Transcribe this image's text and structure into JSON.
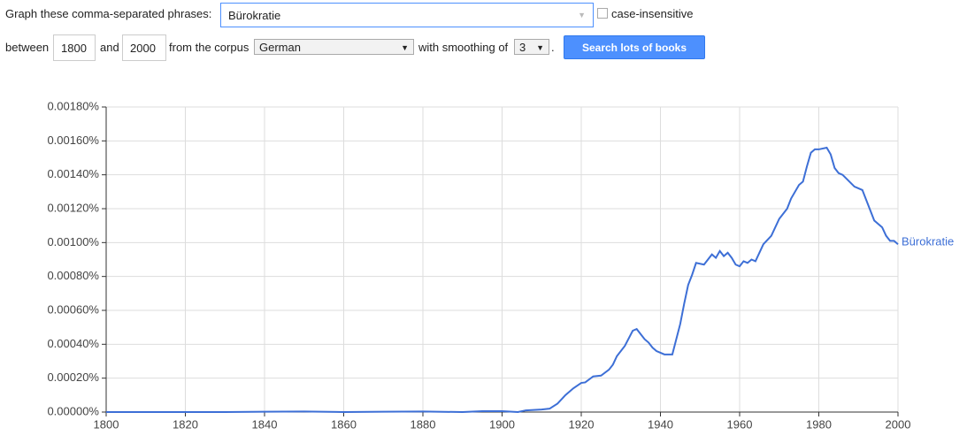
{
  "form": {
    "phrase_label": "Graph these comma-separated phrases:",
    "phrases": "Bürokratie",
    "case_insensitive": "case-insensitive",
    "between": "between",
    "start_year": "1800",
    "and": "and",
    "end_year": "2000",
    "corpus_label": "from the corpus",
    "corpus": "German",
    "smoothing_label": "with smoothing of",
    "smoothing": "3",
    "period": ".",
    "button": "Search lots of books"
  },
  "chart_data": {
    "type": "line",
    "x": [
      1800,
      1810,
      1820,
      1830,
      1840,
      1850,
      1860,
      1870,
      1880,
      1890,
      1895,
      1900,
      1904,
      1906,
      1910,
      1912,
      1914,
      1916,
      1918,
      1920,
      1921,
      1923,
      1925,
      1927,
      1928,
      1929,
      1931,
      1933,
      1934,
      1936,
      1937,
      1938,
      1939,
      1940,
      1941,
      1942,
      1943,
      1945,
      1946,
      1947,
      1948,
      1949,
      1951,
      1953,
      1954,
      1955,
      1956,
      1957,
      1958,
      1959,
      1960,
      1961,
      1962,
      1963,
      1964,
      1965,
      1966,
      1968,
      1970,
      1972,
      1973,
      1975,
      1976,
      1977,
      1978,
      1979,
      1980,
      1982,
      1983,
      1984,
      1985,
      1986,
      1989,
      1991,
      1992,
      1993,
      1994,
      1996,
      1997,
      1998,
      1999,
      2000
    ],
    "series": [
      {
        "name": "Bürokratie",
        "color": "#3d6fd6",
        "values": [
          0,
          0,
          0,
          0,
          2e-06,
          3e-06,
          0,
          2e-06,
          3e-06,
          0,
          5e-06,
          5e-06,
          0,
          1e-05,
          1.5e-05,
          2e-05,
          5e-05,
          0.0001,
          0.00014,
          0.000172,
          0.000175,
          0.00021,
          0.000215,
          0.00025,
          0.00028,
          0.00033,
          0.00039,
          0.00048,
          0.00049,
          0.00043,
          0.00041,
          0.00038,
          0.00036,
          0.00035,
          0.00034,
          0.00034,
          0.00034,
          0.00052,
          0.00064,
          0.00075,
          0.00081,
          0.00088,
          0.00087,
          0.00093,
          0.00091,
          0.00095,
          0.00092,
          0.00094,
          0.00091,
          0.00087,
          0.00086,
          0.00089,
          0.00088,
          0.0009,
          0.00089,
          0.00094,
          0.00099,
          0.00104,
          0.00114,
          0.0012,
          0.00126,
          0.00134,
          0.00136,
          0.00145,
          0.00153,
          0.00155,
          0.00155,
          0.00156,
          0.00152,
          0.00144,
          0.00141,
          0.0014,
          0.00133,
          0.00131,
          0.00125,
          0.00119,
          0.00113,
          0.00109,
          0.00104,
          0.00101,
          0.00101,
          0.00099
        ]
      }
    ],
    "xlim": [
      1800,
      2000
    ],
    "ylim": [
      0,
      0.0018
    ],
    "xticks": [
      1800,
      1820,
      1840,
      1860,
      1880,
      1900,
      1920,
      1940,
      1960,
      1980,
      2000
    ],
    "yticks": [
      {
        "value": 0,
        "label": "0.00000%"
      },
      {
        "value": 0.0002,
        "label": "0.00020%"
      },
      {
        "value": 0.0004,
        "label": "0.00040%"
      },
      {
        "value": 0.0006,
        "label": "0.00060%"
      },
      {
        "value": 0.0008,
        "label": "0.00080%"
      },
      {
        "value": 0.001,
        "label": "0.00100%"
      },
      {
        "value": 0.0012,
        "label": "0.00120%"
      },
      {
        "value": 0.0014,
        "label": "0.00140%"
      },
      {
        "value": 0.0016,
        "label": "0.00160%"
      },
      {
        "value": 0.0018,
        "label": "0.00180%"
      }
    ],
    "grid": true
  }
}
